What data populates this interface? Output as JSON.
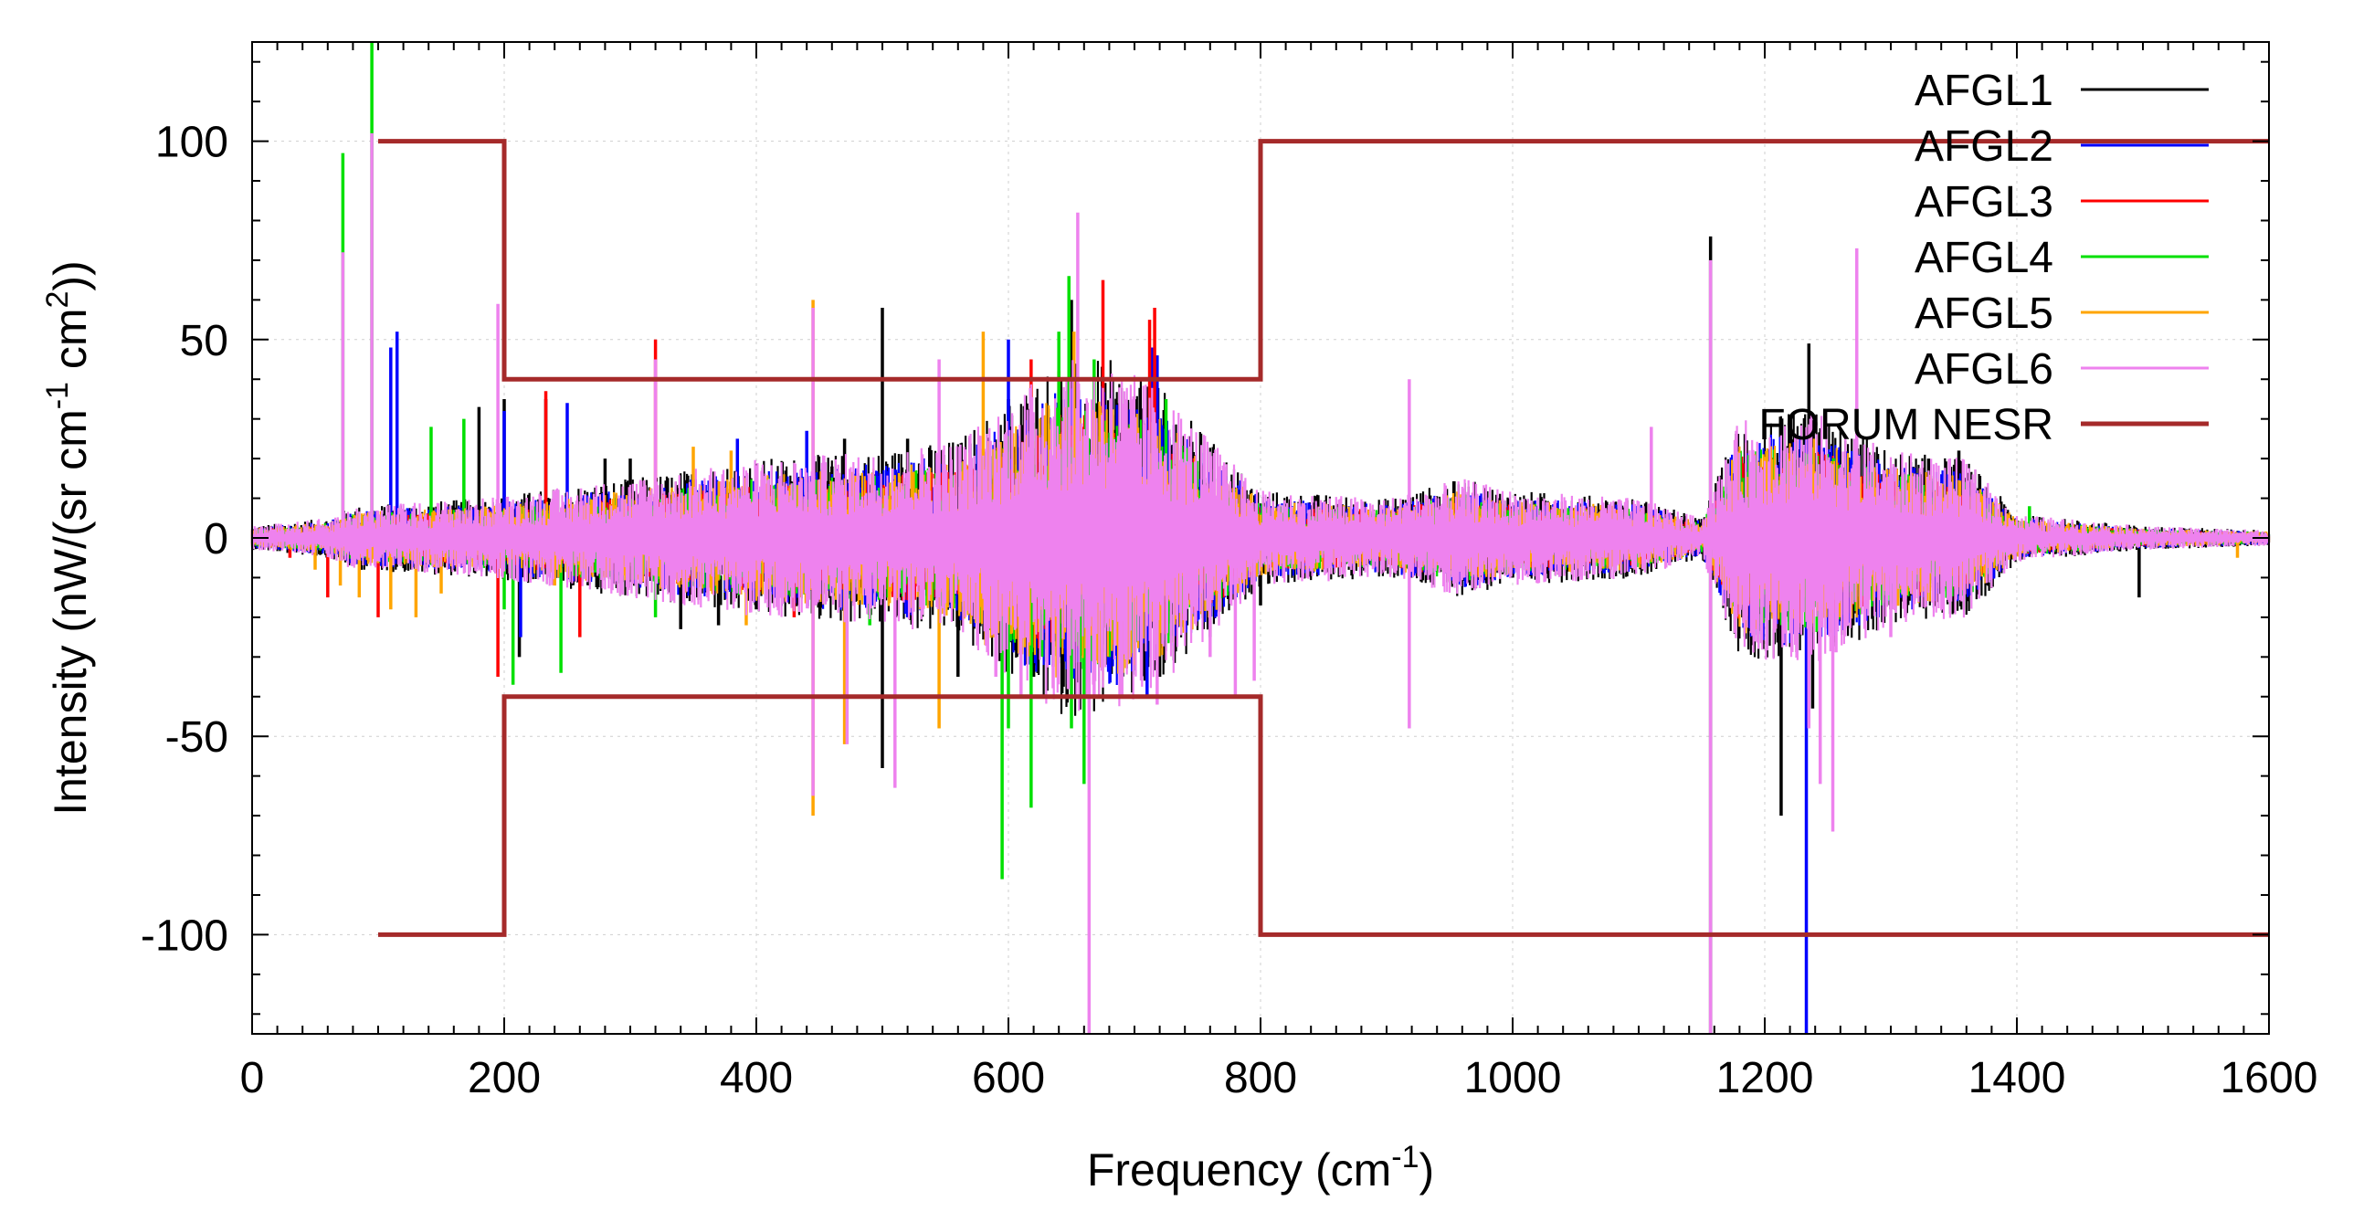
{
  "chart_data": {
    "type": "line",
    "title": "",
    "xlabel": {
      "text": "Frequency (cm",
      "sup": "-1",
      "tail": ")"
    },
    "ylabel": {
      "t1": "Intensity (nW/(sr cm",
      "s1": "-1",
      "t2": " cm",
      "s2": "2",
      "t3": "))"
    },
    "xlim": [
      0,
      1600
    ],
    "ylim": [
      -125,
      125
    ],
    "x_ticks": [
      0,
      200,
      400,
      600,
      800,
      1000,
      1200,
      1400,
      1600
    ],
    "x_tick_labels": [
      "0",
      "200",
      "400",
      "600",
      "800",
      "1000",
      "1200",
      "1400",
      "1600"
    ],
    "y_ticks": [
      -100,
      -50,
      0,
      50,
      100
    ],
    "y_tick_labels": [
      "-100",
      "-50",
      "0",
      "50",
      "100"
    ],
    "grid": true,
    "legend_position": "top-right",
    "series": [
      {
        "name": "AFGL1",
        "color": "#000000",
        "spikes": [
          [
            180,
            33
          ],
          [
            200,
            35
          ],
          [
            212,
            -30
          ],
          [
            233,
            35
          ],
          [
            280,
            20
          ],
          [
            300,
            20
          ],
          [
            340,
            -23
          ],
          [
            370,
            -22
          ],
          [
            400,
            -18
          ],
          [
            460,
            18
          ],
          [
            470,
            25
          ],
          [
            500,
            58
          ],
          [
            500,
            -58
          ],
          [
            520,
            25
          ],
          [
            560,
            -35
          ],
          [
            600,
            35
          ],
          [
            620,
            -35
          ],
          [
            640,
            -28
          ],
          [
            650,
            60
          ],
          [
            700,
            35
          ],
          [
            720,
            -35
          ],
          [
            760,
            -25
          ],
          [
            800,
            -17
          ],
          [
            1000,
            -10
          ],
          [
            1157,
            76
          ],
          [
            1157,
            -125
          ],
          [
            1213,
            -70
          ],
          [
            1235,
            49
          ],
          [
            1238,
            -43
          ],
          [
            1270,
            -22
          ],
          [
            1300,
            -18
          ],
          [
            1330,
            20
          ],
          [
            1354,
            22
          ],
          [
            1497,
            -15
          ]
        ]
      },
      {
        "name": "AFGL2",
        "color": "#0000ff",
        "spikes": [
          [
            110,
            48
          ],
          [
            115,
            52
          ],
          [
            200,
            32
          ],
          [
            213,
            -25
          ],
          [
            250,
            34
          ],
          [
            385,
            25
          ],
          [
            440,
            27
          ],
          [
            520,
            -20
          ],
          [
            590,
            -22
          ],
          [
            600,
            50
          ],
          [
            632,
            -32
          ],
          [
            640,
            -30
          ],
          [
            690,
            -20
          ],
          [
            710,
            -40
          ],
          [
            714,
            48
          ],
          [
            718,
            46
          ],
          [
            1000,
            -8
          ],
          [
            1215,
            -27
          ],
          [
            1233,
            -125
          ],
          [
            1233,
            25
          ],
          [
            1290,
            -20
          ],
          [
            1380,
            10
          ]
        ]
      },
      {
        "name": "AFGL3",
        "color": "#ff0000",
        "spikes": [
          [
            30,
            -5
          ],
          [
            60,
            -15
          ],
          [
            100,
            -20
          ],
          [
            195,
            -35
          ],
          [
            233,
            37
          ],
          [
            260,
            -25
          ],
          [
            320,
            50
          ],
          [
            430,
            -20
          ],
          [
            618,
            45
          ],
          [
            640,
            42
          ],
          [
            672,
            -12
          ],
          [
            675,
            65
          ],
          [
            712,
            55
          ],
          [
            716,
            58
          ],
          [
            1253,
            -20
          ]
        ]
      },
      {
        "name": "AFGL4",
        "color": "#00e000",
        "spikes": [
          [
            72,
            97
          ],
          [
            95,
            125
          ],
          [
            142,
            28
          ],
          [
            168,
            30
          ],
          [
            200,
            -18
          ],
          [
            207,
            -37
          ],
          [
            245,
            -34
          ],
          [
            320,
            -20
          ],
          [
            490,
            -22
          ],
          [
            595,
            -86
          ],
          [
            600,
            -48
          ],
          [
            618,
            -68
          ],
          [
            640,
            52
          ],
          [
            648,
            66
          ],
          [
            650,
            -48
          ],
          [
            660,
            -62
          ],
          [
            668,
            45
          ],
          [
            680,
            -30
          ],
          [
            725,
            35
          ],
          [
            770,
            -10
          ],
          [
            1215,
            -22
          ],
          [
            1410,
            8
          ]
        ]
      },
      {
        "name": "AFGL5",
        "color": "#ffa500",
        "spikes": [
          [
            50,
            -8
          ],
          [
            70,
            -12
          ],
          [
            85,
            -15
          ],
          [
            110,
            -18
          ],
          [
            130,
            -20
          ],
          [
            150,
            -14
          ],
          [
            240,
            -12
          ],
          [
            280,
            -10
          ],
          [
            350,
            23
          ],
          [
            380,
            22
          ],
          [
            392,
            -22
          ],
          [
            445,
            60
          ],
          [
            445,
            -70
          ],
          [
            470,
            -52
          ],
          [
            545,
            -48
          ],
          [
            580,
            52
          ],
          [
            582,
            -27
          ],
          [
            610,
            -27
          ],
          [
            652,
            52
          ],
          [
            668,
            -30
          ],
          [
            686,
            -18
          ],
          [
            720,
            -15
          ],
          [
            1260,
            -20
          ],
          [
            1575,
            -5
          ]
        ]
      },
      {
        "name": "AFGL6",
        "color": "#ee82ee",
        "spikes": [
          [
            72,
            72
          ],
          [
            95,
            102
          ],
          [
            195,
            59
          ],
          [
            320,
            45
          ],
          [
            445,
            58
          ],
          [
            445,
            -65
          ],
          [
            472,
            -52
          ],
          [
            510,
            -63
          ],
          [
            545,
            45
          ],
          [
            590,
            -35
          ],
          [
            610,
            -40
          ],
          [
            655,
            82
          ],
          [
            664,
            -125
          ],
          [
            668,
            -40
          ],
          [
            690,
            -40
          ],
          [
            718,
            -42
          ],
          [
            760,
            -30
          ],
          [
            780,
            -40
          ],
          [
            795,
            -36
          ],
          [
            918,
            40
          ],
          [
            918,
            -48
          ],
          [
            1110,
            28
          ],
          [
            1157,
            70
          ],
          [
            1157,
            -125
          ],
          [
            1235,
            -48
          ],
          [
            1244,
            -62
          ],
          [
            1254,
            -74
          ],
          [
            1273,
            73
          ],
          [
            1300,
            -25
          ]
        ]
      },
      {
        "name": "FORUM NESR",
        "color": "#a52a2a",
        "steps": [
          [
            100,
            100
          ],
          [
            200,
            100
          ],
          [
            200,
            40
          ],
          [
            800,
            40
          ],
          [
            800,
            100
          ],
          [
            1600,
            100
          ]
        ],
        "steps_lower": [
          [
            100,
            -100
          ],
          [
            200,
            -100
          ],
          [
            200,
            -40
          ],
          [
            800,
            -40
          ],
          [
            800,
            -100
          ],
          [
            1600,
            -100
          ]
        ]
      }
    ],
    "noise_envelope": [
      [
        0,
        3
      ],
      [
        60,
        5
      ],
      [
        80,
        8
      ],
      [
        180,
        10
      ],
      [
        300,
        15
      ],
      [
        400,
        20
      ],
      [
        500,
        22
      ],
      [
        560,
        25
      ],
      [
        600,
        35
      ],
      [
        640,
        45
      ],
      [
        680,
        45
      ],
      [
        720,
        38
      ],
      [
        800,
        12
      ],
      [
        900,
        10
      ],
      [
        960,
        15
      ],
      [
        1000,
        12
      ],
      [
        1100,
        10
      ],
      [
        1150,
        5
      ],
      [
        1180,
        30
      ],
      [
        1240,
        32
      ],
      [
        1300,
        22
      ],
      [
        1360,
        20
      ],
      [
        1400,
        6
      ],
      [
        1500,
        3
      ],
      [
        1600,
        2
      ]
    ]
  }
}
